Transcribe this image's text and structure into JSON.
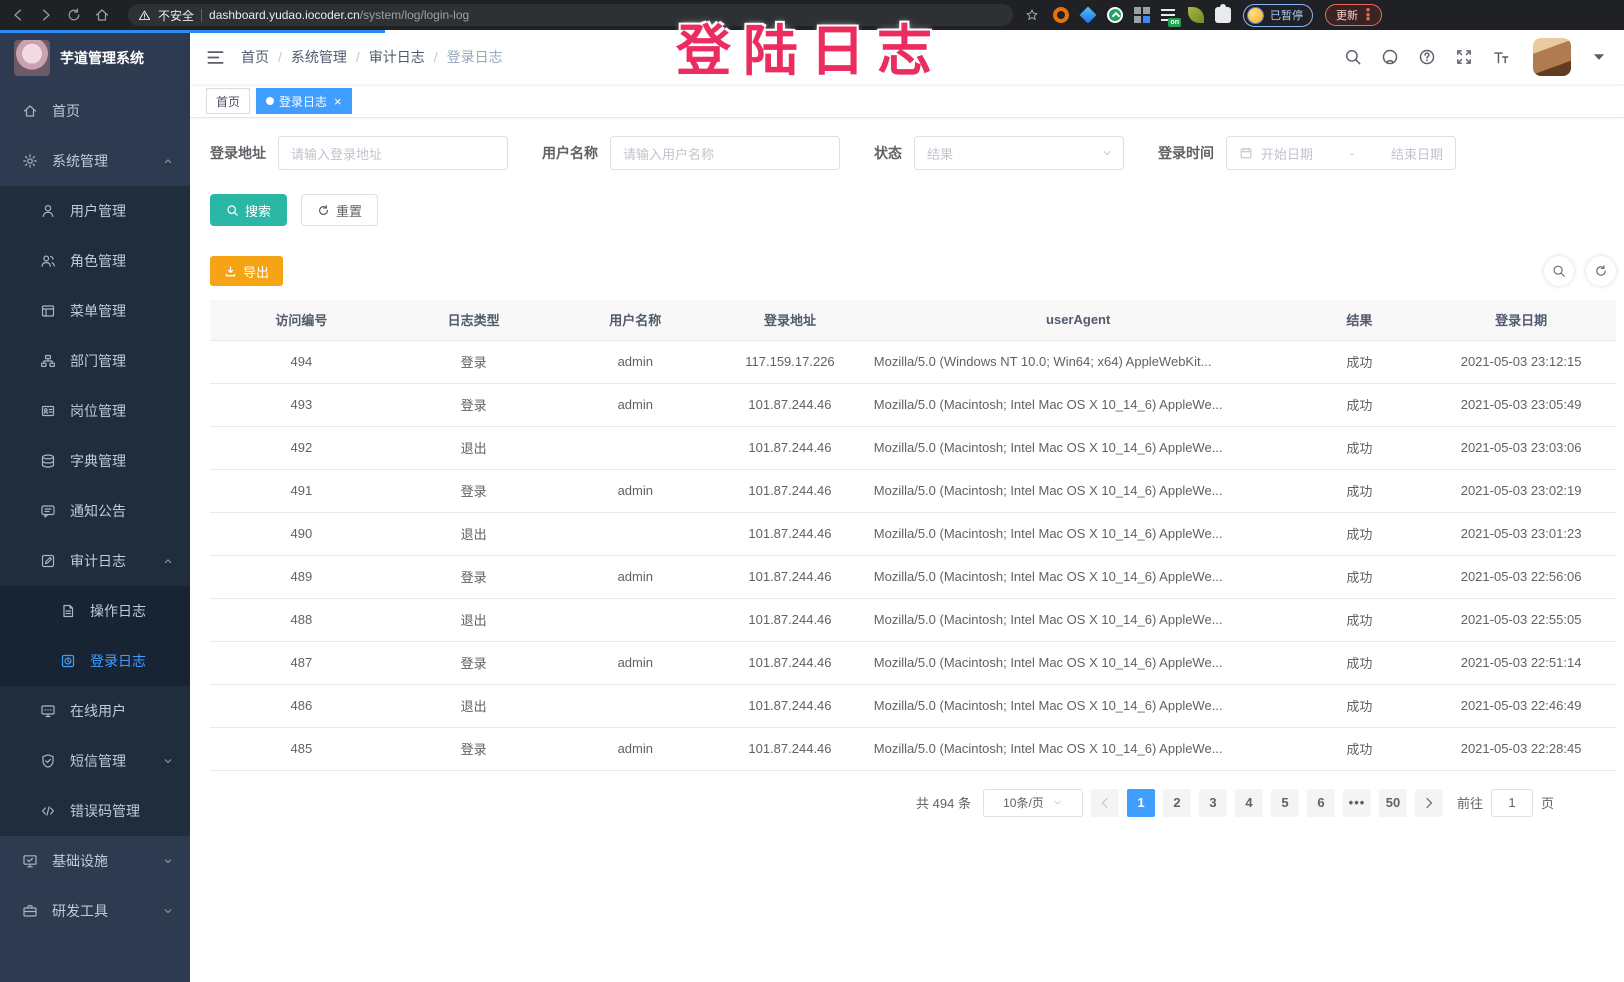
{
  "browser": {
    "security_label": "不安全",
    "url_host": "dashboard.yudao.iocoder.cn",
    "url_path": "/system/log/login-log",
    "extension_on_badge": "on",
    "profile_status": "已暂停",
    "update_button": "更新"
  },
  "overlay": {
    "title": "登陆日志"
  },
  "sidebar": {
    "app_title": "芋道管理系统",
    "items": [
      {
        "id": "dashboard",
        "icon": "home-icon",
        "label": "首页",
        "level": 1
      },
      {
        "id": "system-mgmt",
        "icon": "gear-icon",
        "label": "系统管理",
        "level": 1,
        "expanded": true
      },
      {
        "id": "user-mgmt",
        "icon": "user-icon",
        "label": "用户管理",
        "level": 2
      },
      {
        "id": "role-mgmt",
        "icon": "users-icon",
        "label": "角色管理",
        "level": 2
      },
      {
        "id": "menu-mgmt",
        "icon": "menu-tree-icon",
        "label": "菜单管理",
        "level": 2
      },
      {
        "id": "dept-mgmt",
        "icon": "org-tree-icon",
        "label": "部门管理",
        "level": 2
      },
      {
        "id": "post-mgmt",
        "icon": "badge-icon",
        "label": "岗位管理",
        "level": 2
      },
      {
        "id": "dict-mgmt",
        "icon": "dict-icon",
        "label": "字典管理",
        "level": 2
      },
      {
        "id": "notice",
        "icon": "notice-icon",
        "label": "通知公告",
        "level": 2
      },
      {
        "id": "audit-log",
        "icon": "audit-icon",
        "label": "审计日志",
        "level": 2,
        "expanded": true
      },
      {
        "id": "operation-log",
        "icon": "doc-icon",
        "label": "操作日志",
        "level": 3
      },
      {
        "id": "login-log",
        "icon": "login-log-icon",
        "label": "登录日志",
        "level": 3,
        "active": true
      },
      {
        "id": "online-user",
        "icon": "online-icon",
        "label": "在线用户",
        "level": 2
      },
      {
        "id": "sms-mgmt",
        "icon": "shield-check-icon",
        "label": "短信管理",
        "level": 2,
        "expanded": false
      },
      {
        "id": "error-code",
        "icon": "code-icon",
        "label": "错误码管理",
        "level": 2
      },
      {
        "id": "infrastructure",
        "icon": "monitor-check-icon",
        "label": "基础设施",
        "level": 1,
        "expanded": false
      },
      {
        "id": "dev-tool",
        "icon": "toolbox-icon",
        "label": "研发工具",
        "level": 1,
        "expanded": false
      }
    ]
  },
  "breadcrumb": {
    "separator": "/",
    "items": [
      "首页",
      "系统管理",
      "审计日志",
      "登录日志"
    ]
  },
  "tags": [
    {
      "label": "首页",
      "active": false,
      "closable": false
    },
    {
      "label": "登录日志",
      "active": true,
      "closable": true
    }
  ],
  "filters": {
    "login_address_label": "登录地址",
    "login_address_placeholder": "请输入登录地址",
    "username_label": "用户名称",
    "username_placeholder": "请输入用户名称",
    "status_label": "状态",
    "status_placeholder": "结果",
    "login_time_label": "登录时间",
    "date_start_placeholder": "开始日期",
    "date_separator": "-",
    "date_end_placeholder": "结束日期",
    "search_button": "搜索",
    "reset_button": "重置"
  },
  "toolbar": {
    "export_button": "导出"
  },
  "table": {
    "columns": [
      "访问编号",
      "日志类型",
      "用户名称",
      "登录地址",
      "userAgent",
      "结果",
      "登录日期"
    ],
    "rows": [
      [
        "494",
        "登录",
        "admin",
        "117.159.17.226",
        "Mozilla/5.0 (Windows NT 10.0; Win64; x64) AppleWebKit...",
        "成功",
        "2021-05-03 23:12:15"
      ],
      [
        "493",
        "登录",
        "admin",
        "101.87.244.46",
        "Mozilla/5.0 (Macintosh; Intel Mac OS X 10_14_6) AppleWe...",
        "成功",
        "2021-05-03 23:05:49"
      ],
      [
        "492",
        "退出",
        "",
        "101.87.244.46",
        "Mozilla/5.0 (Macintosh; Intel Mac OS X 10_14_6) AppleWe...",
        "成功",
        "2021-05-03 23:03:06"
      ],
      [
        "491",
        "登录",
        "admin",
        "101.87.244.46",
        "Mozilla/5.0 (Macintosh; Intel Mac OS X 10_14_6) AppleWe...",
        "成功",
        "2021-05-03 23:02:19"
      ],
      [
        "490",
        "退出",
        "",
        "101.87.244.46",
        "Mozilla/5.0 (Macintosh; Intel Mac OS X 10_14_6) AppleWe...",
        "成功",
        "2021-05-03 23:01:23"
      ],
      [
        "489",
        "登录",
        "admin",
        "101.87.244.46",
        "Mozilla/5.0 (Macintosh; Intel Mac OS X 10_14_6) AppleWe...",
        "成功",
        "2021-05-03 22:56:06"
      ],
      [
        "488",
        "退出",
        "",
        "101.87.244.46",
        "Mozilla/5.0 (Macintosh; Intel Mac OS X 10_14_6) AppleWe...",
        "成功",
        "2021-05-03 22:55:05"
      ],
      [
        "487",
        "登录",
        "admin",
        "101.87.244.46",
        "Mozilla/5.0 (Macintosh; Intel Mac OS X 10_14_6) AppleWe...",
        "成功",
        "2021-05-03 22:51:14"
      ],
      [
        "486",
        "退出",
        "",
        "101.87.244.46",
        "Mozilla/5.0 (Macintosh; Intel Mac OS X 10_14_6) AppleWe...",
        "成功",
        "2021-05-03 22:46:49"
      ],
      [
        "485",
        "登录",
        "admin",
        "101.87.244.46",
        "Mozilla/5.0 (Macintosh; Intel Mac OS X 10_14_6) AppleWe...",
        "成功",
        "2021-05-03 22:28:45"
      ]
    ]
  },
  "pagination": {
    "total_text": "共 494 条",
    "page_size": "10条/页",
    "pages": [
      "1",
      "2",
      "3",
      "4",
      "5",
      "6",
      "•••",
      "50"
    ],
    "active_page": "1",
    "goto_label": "前往",
    "goto_value": "1",
    "goto_suffix": "页"
  },
  "colors": {
    "accent": "#409eff",
    "search_button": "#2ab7a5",
    "export_button": "#f6a416",
    "overlay_title": "#ec2c5f"
  }
}
